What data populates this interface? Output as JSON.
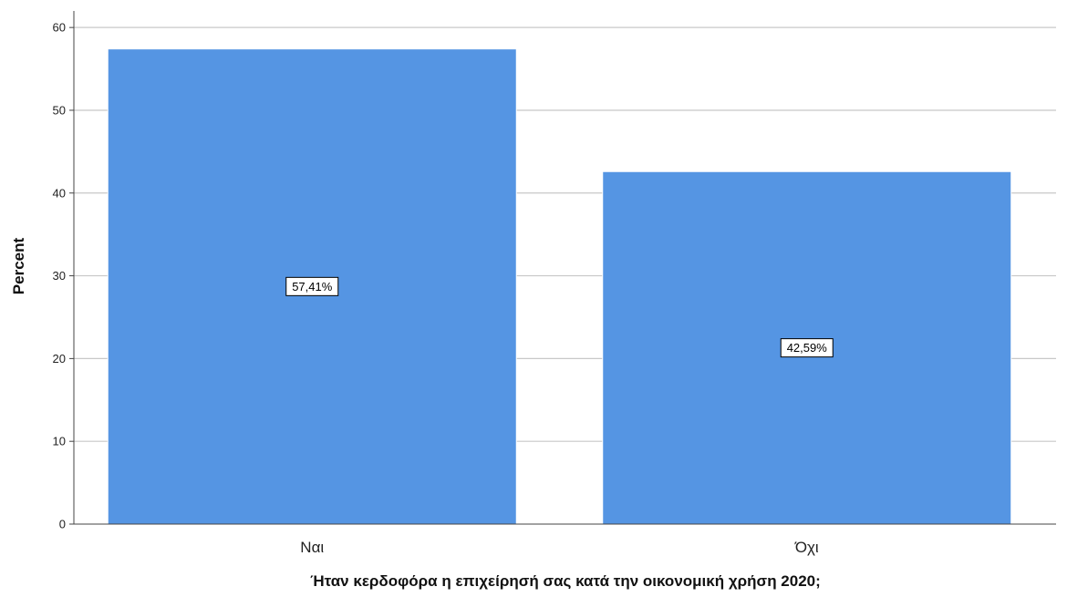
{
  "chart_data": {
    "type": "bar",
    "title": "",
    "xlabel": "Ήταν κερδοφόρα η επιχείρησή σας κατά την οικονομική χρήση 2020;",
    "ylabel": "Percent",
    "categories": [
      "Ναι",
      "Όχι"
    ],
    "values": [
      57.41,
      42.59
    ],
    "data_labels": [
      "57,41%",
      "42,59%"
    ],
    "ylim": [
      0,
      62
    ],
    "yticks": [
      0,
      10,
      20,
      30,
      40,
      50,
      60
    ],
    "grid": "horizontal",
    "legend": "none",
    "colors": {
      "bar": "#5595e3",
      "bar_edge": "#ffffff",
      "grid": "#c8c8c8",
      "axis": "#444444",
      "label_box_border": "#000000",
      "label_box_fill": "#ffffff"
    }
  }
}
